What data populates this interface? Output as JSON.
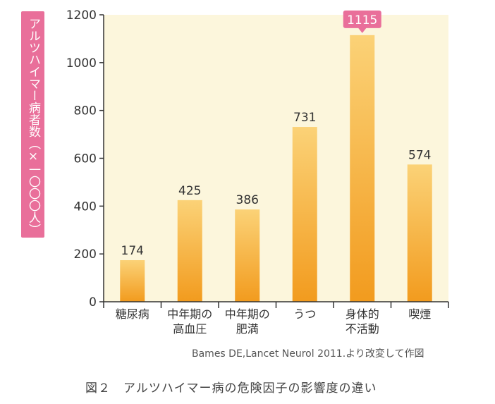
{
  "chart_data": {
    "type": "bar",
    "categories": [
      [
        "糖尿病"
      ],
      [
        "中年期の",
        "高血圧"
      ],
      [
        "中年期の",
        "肥満"
      ],
      [
        "うつ"
      ],
      [
        "身体的",
        "不活動"
      ],
      [
        "喫煙"
      ]
    ],
    "values": [
      174,
      425,
      386,
      731,
      1115,
      574
    ],
    "highlight_index": 4,
    "ylabel": "アルツハイマー病者数（×一〇〇〇人）",
    "ylim": [
      0,
      1200
    ],
    "yticks": [
      0,
      200,
      400,
      600,
      800,
      1000,
      1200
    ],
    "colors": {
      "plot_bg": "#fcf6dc",
      "bar_top": "#fbd277",
      "bar_bottom": "#f29b1e",
      "highlight_label_bg": "#e96f9a",
      "axis_label_bg": "#e96f9a"
    }
  },
  "source": "Bames DE,Lancet Neurol 2011.より改変して作図",
  "caption": "図２　アルツハイマー病の危険因子の影響度の違い"
}
